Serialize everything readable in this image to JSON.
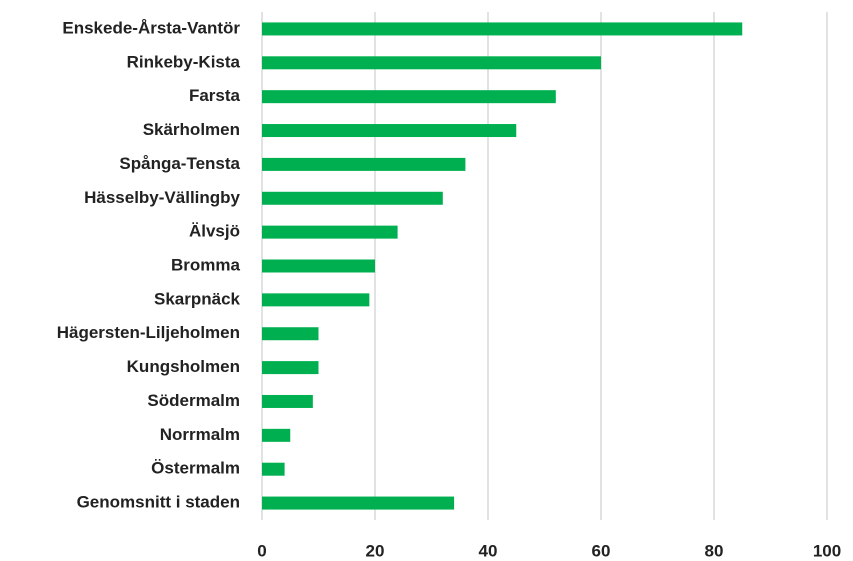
{
  "chart_data": {
    "type": "bar",
    "orientation": "horizontal",
    "categories": [
      "Enskede-Årsta-Vantör",
      "Rinkeby-Kista",
      "Farsta",
      "Skärholmen",
      "Spånga-Tensta",
      "Hässelby-Vällingby",
      "Älvsjö",
      "Bromma",
      "Skarpnäck",
      "Hägersten-Liljeholmen",
      "Kungsholmen",
      "Södermalm",
      "Norrmalm",
      "Östermalm",
      "Genomsnitt i staden"
    ],
    "values": [
      85,
      60,
      52,
      45,
      36,
      32,
      24,
      20,
      19,
      10,
      10,
      9,
      5,
      4,
      34
    ],
    "color": "#00b050",
    "xlim": [
      0,
      100
    ],
    "xticks": [
      0,
      20,
      40,
      60,
      80,
      100
    ],
    "grid": true
  }
}
